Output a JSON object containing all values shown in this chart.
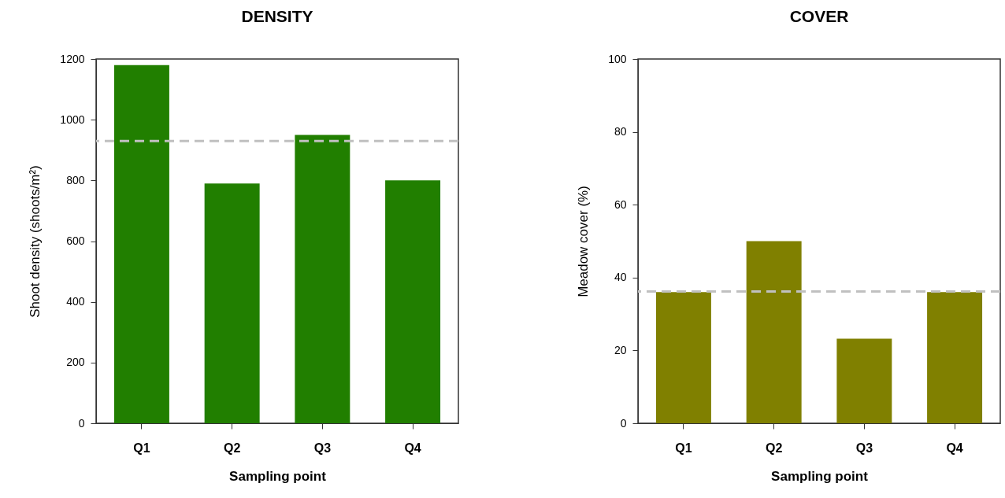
{
  "chart_data": [
    {
      "type": "bar",
      "title": "DENSITY",
      "xlabel": "Sampling point",
      "ylabel": "Shoot density (shoots/m²)",
      "categories": [
        "Q1",
        "Q2",
        "Q3",
        "Q4"
      ],
      "values": [
        1180,
        790,
        950,
        800
      ],
      "color": "#217f00",
      "ylim": [
        0,
        1200
      ],
      "yticks": [
        0,
        200,
        400,
        600,
        800,
        1000,
        1200
      ],
      "grid": false,
      "ref_lines": [
        {
          "axis": "y",
          "value": 930,
          "color": "#c0c0c0",
          "line_style": "dashed"
        }
      ]
    },
    {
      "type": "bar",
      "title": "COVER",
      "xlabel": "Sampling point",
      "ylabel": "Meadow cover (%)",
      "categories": [
        "Q1",
        "Q2",
        "Q3",
        "Q4"
      ],
      "values": [
        36,
        50,
        23.2,
        36
      ],
      "color": "#808000",
      "ylim": [
        0,
        100
      ],
      "yticks": [
        0,
        20,
        40,
        60,
        80,
        100
      ],
      "grid": false,
      "ref_lines": [
        {
          "axis": "y",
          "value": 36.2,
          "color": "#c0c0c0",
          "line_style": "dashed"
        }
      ]
    }
  ]
}
